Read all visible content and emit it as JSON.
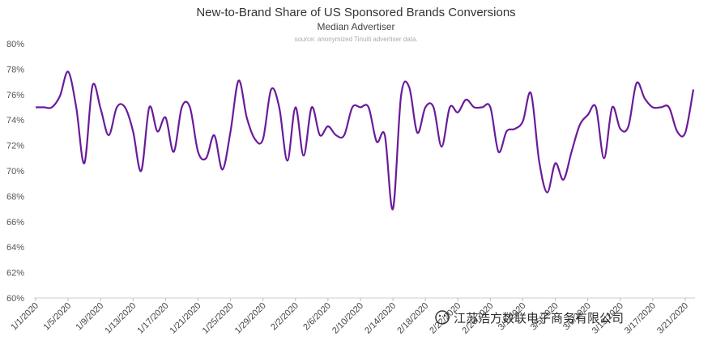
{
  "chart_data": {
    "type": "line",
    "title": "New-to-Brand Share of US Sponsored Brands Conversions",
    "subtitle": "Median Advertiser",
    "source": "source: anonymized Tinuiti advertiser data.",
    "xlabel": "",
    "ylabel": "",
    "ylim": [
      60,
      80
    ],
    "yticks": [
      "80%",
      "78%",
      "76%",
      "74%",
      "72%",
      "70%",
      "68%",
      "66%",
      "64%",
      "62%",
      "60%"
    ],
    "grid": false,
    "line_color": "#6a1b9a",
    "x": [
      "1/1/2020",
      "1/2/2020",
      "1/3/2020",
      "1/4/2020",
      "1/5/2020",
      "1/6/2020",
      "1/7/2020",
      "1/8/2020",
      "1/9/2020",
      "1/10/2020",
      "1/11/2020",
      "1/12/2020",
      "1/13/2020",
      "1/14/2020",
      "1/15/2020",
      "1/16/2020",
      "1/17/2020",
      "1/18/2020",
      "1/19/2020",
      "1/20/2020",
      "1/21/2020",
      "1/22/2020",
      "1/23/2020",
      "1/24/2020",
      "1/25/2020",
      "1/26/2020",
      "1/27/2020",
      "1/28/2020",
      "1/29/2020",
      "1/30/2020",
      "1/31/2020",
      "2/1/2020",
      "2/2/2020",
      "2/3/2020",
      "2/4/2020",
      "2/5/2020",
      "2/6/2020",
      "2/7/2020",
      "2/8/2020",
      "2/9/2020",
      "2/10/2020",
      "2/11/2020",
      "2/12/2020",
      "2/13/2020",
      "2/14/2020",
      "2/15/2020",
      "2/16/2020",
      "2/17/2020",
      "2/18/2020",
      "2/19/2020",
      "2/20/2020",
      "2/21/2020",
      "2/22/2020",
      "2/23/2020",
      "2/24/2020",
      "2/25/2020",
      "2/26/2020",
      "2/27/2020",
      "2/28/2020",
      "2/29/2020",
      "3/1/2020",
      "3/2/2020",
      "3/3/2020",
      "3/4/2020",
      "3/5/2020",
      "3/6/2020",
      "3/7/2020",
      "3/8/2020",
      "3/9/2020",
      "3/10/2020",
      "3/11/2020",
      "3/12/2020",
      "3/13/2020",
      "3/14/2020",
      "3/15/2020",
      "3/16/2020",
      "3/17/2020",
      "3/18/2020",
      "3/19/2020",
      "3/20/2020",
      "3/21/2020",
      "3/22/2020"
    ],
    "series": [
      {
        "values": [
          75.0,
          75.0,
          75.0,
          75.9,
          77.8,
          75.0,
          70.6,
          76.7,
          74.9,
          72.8,
          75.0,
          75.0,
          73.1,
          70.0,
          75.0,
          73.1,
          74.2,
          71.5,
          75.0,
          75.0,
          71.5,
          71.0,
          72.8,
          70.1,
          73.1,
          77.1,
          74.2,
          72.5,
          72.5,
          76.4,
          75.0,
          70.8,
          75.0,
          71.2,
          75.0,
          72.8,
          73.5,
          72.8,
          72.8,
          75.0,
          75.0,
          75.0,
          72.3,
          72.8,
          67.0,
          75.9,
          76.6,
          73.0,
          75.0,
          75.0,
          71.9,
          75.0,
          74.6,
          75.6,
          75.0,
          75.0,
          75.0,
          71.5,
          73.1,
          73.3,
          73.9,
          76.1,
          70.8,
          68.3,
          70.6,
          69.3,
          71.5,
          73.6,
          74.4,
          75.0,
          71.0,
          75.0,
          73.3,
          73.5,
          76.9,
          75.7,
          75.0,
          75.0,
          75.0,
          73.1,
          73.0,
          76.4
        ]
      }
    ]
  },
  "x_tick_labels": [
    "1/1/2020",
    "1/5/2020",
    "1/9/2020",
    "1/13/2020",
    "1/17/2020",
    "1/21/2020",
    "1/25/2020",
    "1/29/2020",
    "2/2/2020",
    "2/6/2020",
    "2/10/2020",
    "2/14/2020",
    "2/18/2020",
    "2/22/2020",
    "2/26/2020",
    "3/1/2020",
    "3/5/2020",
    "3/9/2020",
    "3/13/2020",
    "3/17/2020",
    "3/21/2020"
  ],
  "watermark": {
    "icon": "wechat-icon",
    "text": "江苏浩方数联电子商务有限公司"
  }
}
